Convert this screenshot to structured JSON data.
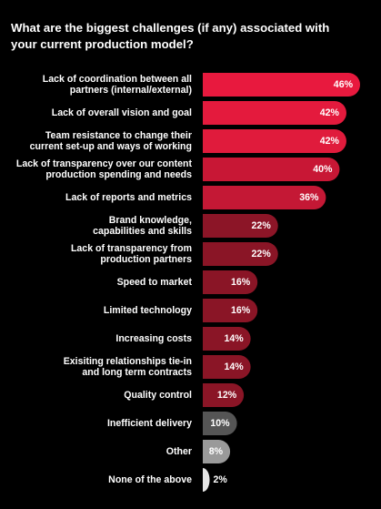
{
  "chart_data": {
    "type": "bar",
    "orientation": "horizontal",
    "title": "What are the biggest challenges (if any) associated with\nyour current production model?",
    "categories": [
      "Lack of coordination between all\npartners (internal/external)",
      "Lack of overall vision and goal",
      "Team resistance to change their\ncurrent set-up and ways of working",
      "Lack of transparency over our content\nproduction spending and needs",
      "Lack of reports and metrics",
      "Brand knowledge,\ncapabilities and skills",
      "Lack of transparency from\nproduction partners",
      "Speed to market",
      "Limited technology",
      "Increasing costs",
      "Exisiting relationships tie-in\nand long term contracts",
      "Quality control",
      "Inefficient delivery",
      "Other",
      "None of the above"
    ],
    "values": [
      46,
      42,
      42,
      40,
      36,
      22,
      22,
      16,
      16,
      14,
      14,
      12,
      10,
      8,
      2
    ],
    "value_labels": [
      "46%",
      "42%",
      "42%",
      "40%",
      "36%",
      "22%",
      "22%",
      "16%",
      "16%",
      "14%",
      "14%",
      "12%",
      "10%",
      "8%",
      "2%"
    ],
    "colors": [
      "#e8193e",
      "#e41a3d",
      "#e01b3c",
      "#c81735",
      "#c41835",
      "#8c1527",
      "#8a1526",
      "#8a1526",
      "#8a1526",
      "#8a1526",
      "#8a1526",
      "#8a1526",
      "#555555",
      "#9a9a9a",
      "#e6e6e6"
    ],
    "value_label_colors": [
      "#ffffff",
      "#ffffff",
      "#ffffff",
      "#ffffff",
      "#ffffff",
      "#ffffff",
      "#ffffff",
      "#ffffff",
      "#ffffff",
      "#ffffff",
      "#ffffff",
      "#ffffff",
      "#ffffff",
      "#ffffff",
      "#ffffff"
    ],
    "xlim": [
      0,
      46
    ],
    "grid": false,
    "legend": "none"
  }
}
